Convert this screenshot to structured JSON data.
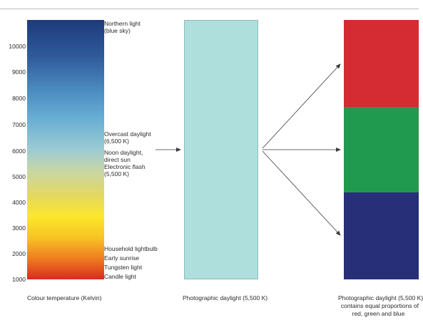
{
  "scale_ticks": [
    "10000",
    "9000",
    "8000",
    "7000",
    "6000",
    "5000",
    "4000",
    "3000",
    "2000",
    "1000"
  ],
  "annotations": {
    "northern": [
      "Northern light",
      "(blue sky)"
    ],
    "overcast": [
      "Overcast daylight",
      "(6,500 K)"
    ],
    "noon": [
      "Noon daylight,",
      "direct sun",
      "Electronic flash",
      "(5,500 K)"
    ],
    "household": "Household lightbulb",
    "sunrise": "Early sunrise",
    "tungsten": "Tungsten light",
    "candle": "Candle light"
  },
  "captions": {
    "scale": "Colour temperature (Kelvin)",
    "daylight": "Photographic daylight (5,500 K)",
    "rgb": [
      "Photographic daylight (5,500 K)",
      "contains equal proportions of",
      "red, green and blue"
    ]
  },
  "colors": {
    "daylight": "#afdfdc",
    "red": "#d52b32",
    "green": "#1f9a4e",
    "blue": "#262f78",
    "arrow": "#3a3a3a"
  }
}
